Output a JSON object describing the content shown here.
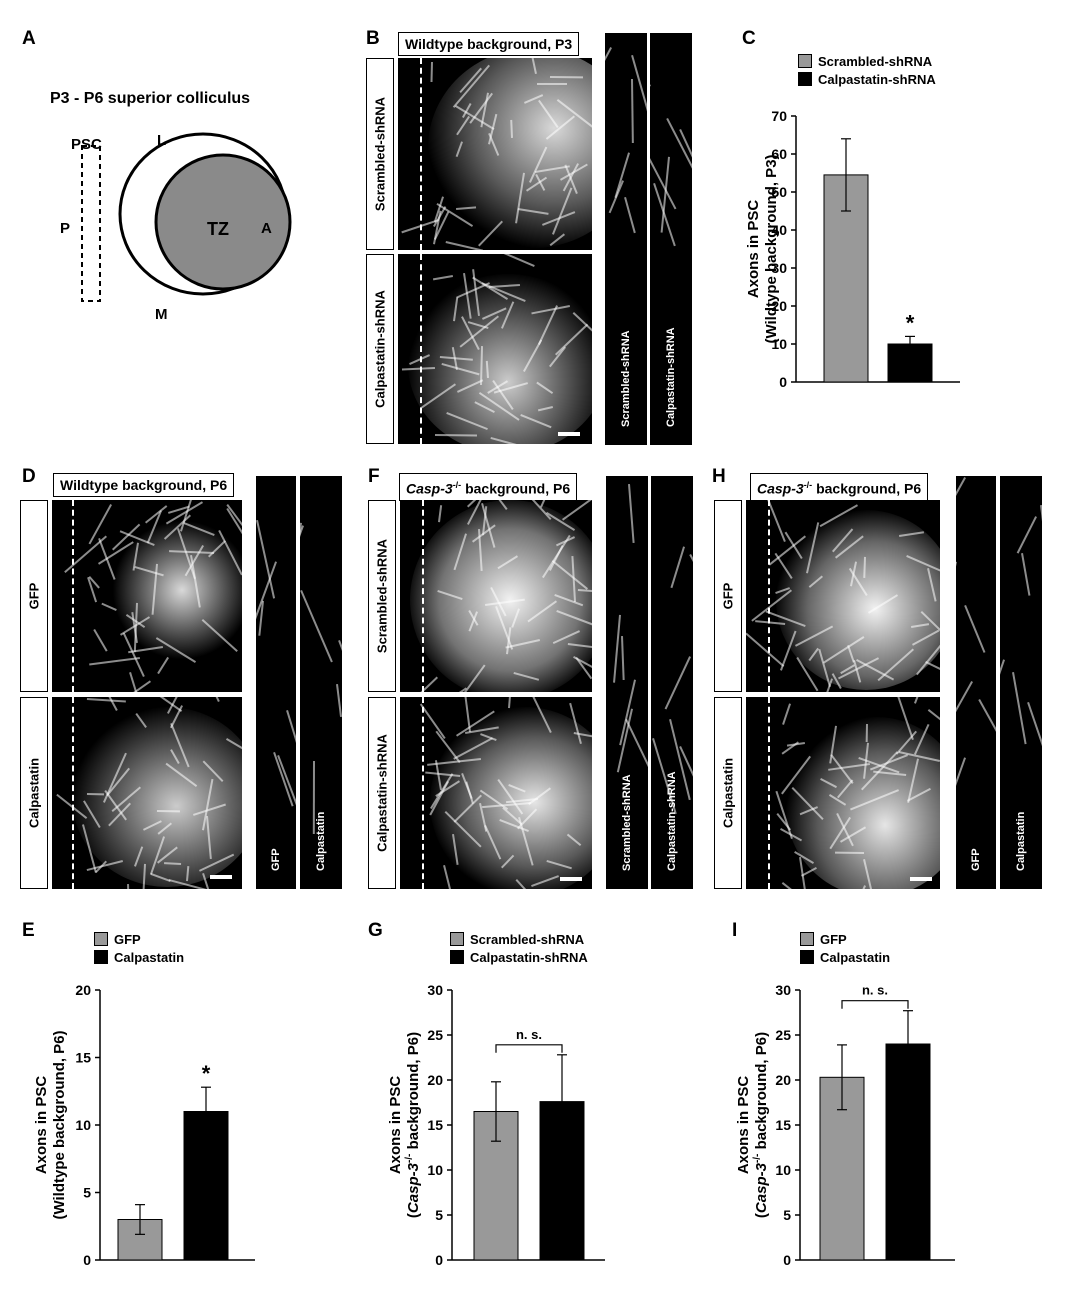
{
  "panels": {
    "A": {
      "letter": "A",
      "title": "P3 - P6 superior colliculus",
      "labels": {
        "psc": "PSC",
        "l": "L",
        "p": "P",
        "a": "A",
        "m": "M",
        "tz": "TZ"
      },
      "colors": {
        "tz": "#8a8a8a"
      }
    },
    "B": {
      "letter": "B",
      "title": "Wildtype background, P3",
      "rows": [
        "Scrambled-shRNA",
        "Calpastatin-shRNA"
      ],
      "strips": [
        "Scrambled-shRNA",
        "Calpastatin-shRNA"
      ]
    },
    "D": {
      "letter": "D",
      "title": "Wildtype background, P6",
      "rows": [
        "GFP",
        "Calpastatin"
      ],
      "strips": [
        "GFP",
        "Calpastatin"
      ]
    },
    "F": {
      "letter": "F",
      "title_italic": "Casp-3",
      "title_sup": "-/-",
      "title_rest": "background, P6",
      "rows": [
        "Scrambled-shRNA",
        "Calpastatin-shRNA"
      ],
      "strips": [
        "Scrambled-shRNA",
        "Calpastatin-shRNA"
      ]
    },
    "H": {
      "letter": "H",
      "title_italic": "Casp-3",
      "title_sup": "-/-",
      "title_rest": "background, P6",
      "rows": [
        "GFP",
        "Calpastatin"
      ],
      "strips": [
        "GFP",
        "Calpastatin"
      ]
    }
  },
  "chart_data": [
    {
      "id": "C",
      "type": "bar",
      "letter": "C",
      "categories": [
        "Scrambled-shRNA",
        "Calpastatin-shRNA"
      ],
      "values": [
        54.5,
        10
      ],
      "errors": [
        9.5,
        2
      ],
      "colors": [
        "#999999",
        "#000000"
      ],
      "ylim": [
        0,
        70
      ],
      "yticks": [
        0,
        10,
        20,
        30,
        40,
        50,
        60,
        70
      ],
      "ylabel_lines": [
        "Axons in PSC",
        "(Wildtype background, P3)"
      ],
      "annotation": "*",
      "annotation_bar": 1,
      "legend": [
        "Scrambled-shRNA",
        "Calpastatin-shRNA"
      ]
    },
    {
      "id": "E",
      "type": "bar",
      "letter": "E",
      "categories": [
        "GFP",
        "Calpastatin"
      ],
      "values": [
        3,
        11
      ],
      "errors": [
        1.1,
        1.8
      ],
      "colors": [
        "#999999",
        "#000000"
      ],
      "ylim": [
        0,
        20
      ],
      "yticks": [
        0,
        5,
        10,
        15,
        20
      ],
      "ylabel_lines": [
        "Axons in PSC",
        "(Wildtype background, P6)"
      ],
      "annotation": "*",
      "annotation_bar": 1,
      "legend": [
        "GFP",
        "Calpastatin"
      ]
    },
    {
      "id": "G",
      "type": "bar",
      "letter": "G",
      "categories": [
        "Scrambled-shRNA",
        "Calpastatin-shRNA"
      ],
      "values": [
        16.5,
        17.6
      ],
      "errors": [
        3.3,
        5.2
      ],
      "colors": [
        "#999999",
        "#000000"
      ],
      "ylim": [
        0,
        30
      ],
      "yticks": [
        0,
        5,
        10,
        15,
        20,
        25,
        30
      ],
      "ylabel_line1": "Axons in PSC",
      "ylabel_italic": "Casp-3",
      "ylabel_sup": "-/-",
      "ylabel_rest": " background, P6)",
      "annotation": "n. s.",
      "legend": [
        "Scrambled-shRNA",
        "Calpastatin-shRNA"
      ]
    },
    {
      "id": "I",
      "type": "bar",
      "letter": "I",
      "categories": [
        "GFP",
        "Calpastatin"
      ],
      "values": [
        20.3,
        24
      ],
      "errors": [
        3.6,
        3.7
      ],
      "colors": [
        "#999999",
        "#000000"
      ],
      "ylim": [
        0,
        30
      ],
      "yticks": [
        0,
        5,
        10,
        15,
        20,
        25,
        30
      ],
      "ylabel_line1": "Axons in PSC",
      "ylabel_italic": "Casp-3",
      "ylabel_sup": "-/-",
      "ylabel_rest": " background, P6)",
      "annotation": "n. s.",
      "legend": [
        "GFP",
        "Calpastatin"
      ]
    }
  ]
}
